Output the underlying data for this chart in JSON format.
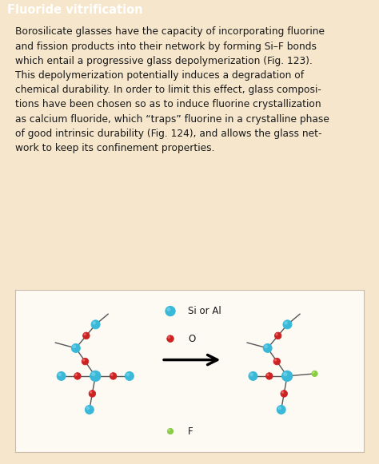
{
  "title": "Fluoride vitrification",
  "title_color": "#ffffff",
  "title_bg": "#7a8fa0",
  "bg_color": "#f5e6cc",
  "diagram_bg": "#faf7f0",
  "body_text": "Borosilicate glasses have the capacity of incorporating fluorine and fission products into their network by forming Si–F bonds which entail a progressive glass depolymerization (Fig. 123). This depolymerization potentially induces a degradation of chemical durability. In order to limit this effect, glass composi-tions have been chosen so as to induce fluorine crystallization as calcium fluoride, which “traps” fluorine in a crystalline phase of good intrinsic durability (Fig. 124), and allows the glass net-work to keep its confinement properties.",
  "si_al_color": "#3ab8d8",
  "si_al_edge": "#1a7a9a",
  "o_color": "#cc2222",
  "o_edge": "#881111",
  "f_color": "#88cc44",
  "f_edge": "#4a8820",
  "bond_color": "#555555",
  "legend_si_label": "Si or Al",
  "legend_o_label": "O",
  "legend_f_label": "F"
}
